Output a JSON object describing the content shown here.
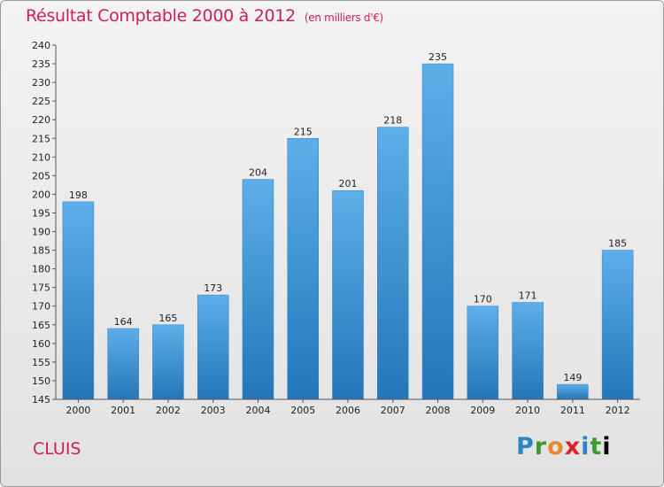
{
  "chart_data": {
    "type": "bar",
    "title": "Résultat Comptable 2000 à 2012",
    "unit_note": "(en milliers d'€)",
    "categories": [
      "2000",
      "2001",
      "2002",
      "2003",
      "2004",
      "2005",
      "2006",
      "2007",
      "2008",
      "2009",
      "2010",
      "2011",
      "2012"
    ],
    "values": [
      198,
      164,
      165,
      173,
      204,
      215,
      201,
      218,
      235,
      170,
      171,
      149,
      185
    ],
    "ylim": [
      145,
      240
    ],
    "ytick_step": 5,
    "xlabel": "",
    "ylabel": "",
    "grid": false,
    "bar_color": "#3b95d8"
  },
  "commune": "CLUIS",
  "brand": {
    "letters": [
      "P",
      "r",
      "o",
      "x",
      "i",
      "t",
      "i"
    ]
  },
  "colors": {
    "title": "#cc1f55",
    "bar_top": "#5daee9",
    "bar_bottom": "#2476b8"
  }
}
